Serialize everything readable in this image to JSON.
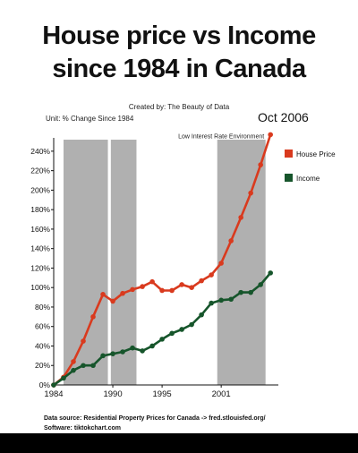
{
  "header": {
    "title_line1": "House price vs Income",
    "title_line2": "since 1984 in Canada",
    "credit": "Created by: The Beauty of Data",
    "unit": "Unit: % Change Since 1984",
    "date": "Oct 2006"
  },
  "footer": {
    "source": "Data source: Residential Property Prices for Canada -> fred.stlouisfed.org/",
    "software": "Software: tiktokchart.com"
  },
  "chart_data": {
    "type": "line",
    "title": "House price vs Income since 1984 in Canada",
    "ylabel": "% Change Since 1984",
    "xlim": [
      1984,
      2006.8
    ],
    "ylim": [
      0,
      250
    ],
    "xticks": [
      1984,
      1990,
      1995,
      2001
    ],
    "yticks": [
      0,
      20,
      40,
      60,
      80,
      100,
      120,
      140,
      160,
      180,
      200,
      220,
      240
    ],
    "ytick_suffix": "%",
    "grid": false,
    "legend_position": "right",
    "shaded_regions": [
      {
        "start": 1985.0,
        "end": 1989.5,
        "color": "#b0b0b0"
      },
      {
        "start": 1989.8,
        "end": 1992.4,
        "color": "#b0b0b0"
      },
      {
        "start": 2000.6,
        "end": 2005.5,
        "color": "#b0b0b0"
      }
    ],
    "annotations": [
      {
        "text": "Low Interest Rate Environment",
        "x": 2001.0,
        "y": 255
      }
    ],
    "series": [
      {
        "name": "House Price",
        "color": "#d93a1e",
        "points": [
          [
            1984.0,
            0
          ],
          [
            1985.0,
            8
          ],
          [
            1986.0,
            24
          ],
          [
            1987.0,
            45
          ],
          [
            1988.0,
            70
          ],
          [
            1989.0,
            93
          ],
          [
            1990.0,
            86
          ],
          [
            1991.0,
            94
          ],
          [
            1992.0,
            98
          ],
          [
            1993.0,
            101
          ],
          [
            1994.0,
            106
          ],
          [
            1995.0,
            97
          ],
          [
            1996.0,
            97
          ],
          [
            1997.0,
            103
          ],
          [
            1998.0,
            100
          ],
          [
            1999.0,
            107
          ],
          [
            2000.0,
            113
          ],
          [
            2001.0,
            125
          ],
          [
            2002.0,
            148
          ],
          [
            2003.0,
            172
          ],
          [
            2004.0,
            197
          ],
          [
            2005.0,
            226
          ],
          [
            2006.0,
            257
          ]
        ]
      },
      {
        "name": "Income",
        "color": "#16552b",
        "points": [
          [
            1984.0,
            0
          ],
          [
            1985.0,
            7
          ],
          [
            1986.0,
            15
          ],
          [
            1987.0,
            20
          ],
          [
            1988.0,
            20
          ],
          [
            1989.0,
            30
          ],
          [
            1990.0,
            32
          ],
          [
            1991.0,
            34
          ],
          [
            1992.0,
            38
          ],
          [
            1993.0,
            35
          ],
          [
            1994.0,
            40
          ],
          [
            1995.0,
            47
          ],
          [
            1996.0,
            53
          ],
          [
            1997.0,
            57
          ],
          [
            1998.0,
            62
          ],
          [
            1999.0,
            72
          ],
          [
            2000.0,
            84
          ],
          [
            2001.0,
            87
          ],
          [
            2002.0,
            88
          ],
          [
            2003.0,
            95
          ],
          [
            2004.0,
            95
          ],
          [
            2005.0,
            103
          ],
          [
            2006.0,
            115
          ]
        ]
      }
    ]
  }
}
